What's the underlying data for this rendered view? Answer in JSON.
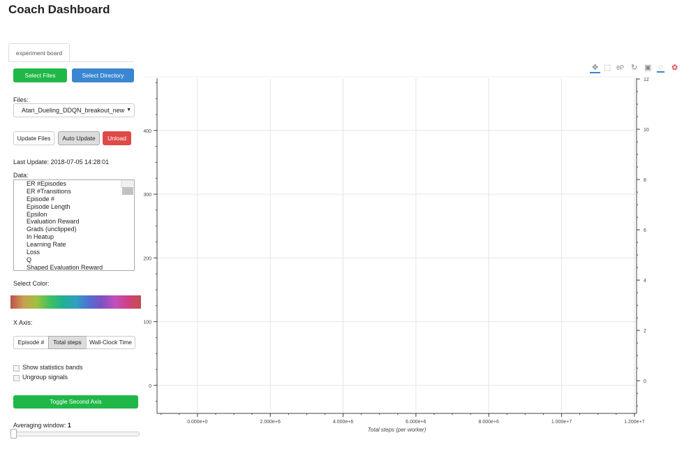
{
  "title": "Coach Dashboard",
  "tabs": [
    {
      "label": "experiment board"
    }
  ],
  "buttons": {
    "select_files": "Select Files",
    "select_directory": "Select Directory",
    "update_files": "Update Files",
    "auto_update": "Auto Update",
    "unload": "Unload",
    "toggle_second_axis": "Toggle Second Axis"
  },
  "files": {
    "label": "Files:",
    "selected": "Atari_Dueling_DDQN_breakout_new"
  },
  "last_update": "Last Update: 2018-07-05 14:28:01",
  "data": {
    "label": "Data:",
    "items": [
      "ER #Episodes",
      "ER #Transitions",
      "Episode #",
      "Episode Length",
      "Epsilon",
      "Evaluation Reward",
      "Grads (unclipped)",
      "In Heatup",
      "Learning Rate",
      "Loss",
      "Q",
      "Shaped Evaluation Reward"
    ]
  },
  "select_color_label": "Select Color:",
  "x_axis": {
    "label": "X Axis:",
    "options": [
      "Episode #",
      "Total steps",
      "Wall-Clock Time"
    ],
    "selected": "Total steps"
  },
  "checkboxes": [
    {
      "label": "Show statistics bands",
      "checked": false
    },
    {
      "label": "Ungroup signals",
      "checked": false
    }
  ],
  "averaging": {
    "label": "Averaging window:",
    "value": "1"
  },
  "toolbar": [
    "pan-icon",
    "box-zoom-icon",
    "wheel-zoom-icon",
    "reset-icon",
    "save-icon",
    "hover-icon",
    "color-wheel-icon"
  ],
  "colors": {
    "green": "#1fb848",
    "blue": "#3a86d0",
    "red": "#e04848"
  },
  "chart_data": {
    "type": "line",
    "xlabel": "Total steps (per worker)",
    "xlim": [
      -1110000,
      12060000
    ],
    "ylim": [
      -44,
      482
    ],
    "y2lim": [
      -1.3,
      12.03
    ],
    "xticks": [
      "0.000e+0",
      "2.000e+6",
      "4.000e+6",
      "6.000e+6",
      "8.000e+6",
      "1.000e+7",
      "1.200e+7"
    ],
    "xtick_values": [
      0,
      2000000,
      4000000,
      6000000,
      8000000,
      10000000,
      12000000
    ],
    "yticks": [
      "0",
      "100",
      "200",
      "300",
      "400"
    ],
    "ytick_values": [
      0,
      100,
      200,
      300,
      400
    ],
    "y2ticks": [
      "0",
      "2",
      "4",
      "6",
      "8",
      "10",
      "12"
    ],
    "y2tick_values": [
      0,
      2,
      4,
      6,
      8,
      10,
      12
    ],
    "grid": true,
    "series": []
  }
}
